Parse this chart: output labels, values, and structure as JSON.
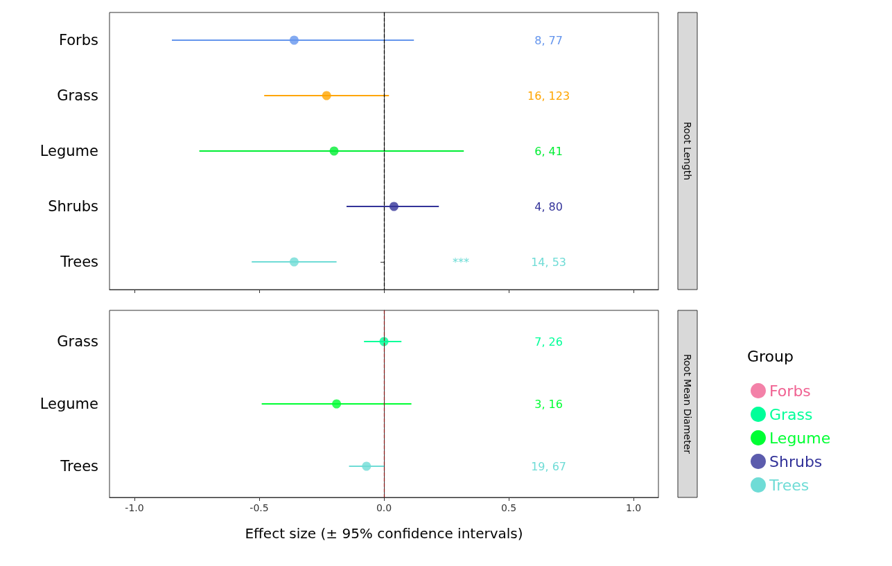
{
  "chart_data": [
    {
      "type": "scatter",
      "y2label": "Root Length",
      "orientation": "horizontal",
      "categories": [
        "Forbs",
        "Grass",
        "Legume",
        "Shrubs",
        "Trees"
      ],
      "marker": "circle",
      "grid": false,
      "legend": false,
      "tick_labels": "y",
      "xlim": [
        -1.1,
        1.1
      ],
      "xticks": [
        -1,
        -0.5,
        0,
        0.5,
        1
      ],
      "values": [
        -0.36,
        -0.23,
        -0.2,
        0.04,
        -0.36
      ],
      "errors": [
        [
          -0.85,
          0.12
        ],
        [
          -0.48,
          0.02
        ],
        [
          -0.74,
          0.32
        ],
        [
          -0.15,
          0.22
        ],
        [
          -0.53,
          -0.19
        ]
      ],
      "colors": [
        "#6495ed",
        "#ffa500",
        "#00ee33",
        "#333399",
        "#6fdcd6"
      ],
      "ref_lines": [
        {
          "axis": "x",
          "value": 0,
          "line_style": "dashed",
          "color": "#000000"
        }
      ],
      "annotations": [
        "***",
        "8, 77",
        "16, 123",
        "6, 41",
        "4, 80",
        "14, 53"
      ]
    },
    {
      "type": "scatter",
      "y2label": "Root Mean Diameter",
      "orientation": "horizontal",
      "categories": [
        "Grass",
        "Legume",
        "Trees"
      ],
      "marker": "circle",
      "grid": false,
      "legend": "right",
      "legend_title": "Group",
      "xlabel": "Effect size (± 95% confidence intervals)",
      "xlim": [
        -1.1,
        1.1
      ],
      "xticks": [
        {
          "value": -1,
          "label": "-1.0"
        },
        {
          "value": -0.5,
          "label": "-0.5"
        },
        {
          "value": 0,
          "label": "0.0"
        },
        {
          "value": 0.5,
          "label": "0.5"
        },
        {
          "value": 1,
          "label": "1.0"
        }
      ],
      "series": [
        {
          "name": "Forbs",
          "color": "#f06292",
          "values": [
            null,
            null,
            null
          ]
        },
        {
          "name": "Grass",
          "color": "#00ff99",
          "values": [
            0.0,
            null,
            null
          ],
          "errors": [
            [
              -0.08,
              0.07
            ],
            null,
            null
          ]
        },
        {
          "name": "Legume",
          "color": "#00ff33",
          "values": [
            null,
            -0.19,
            null
          ],
          "errors": [
            null,
            [
              -0.49,
              0.11
            ],
            null
          ]
        },
        {
          "name": "Shrubs",
          "color": "#333399",
          "values": [
            null,
            null,
            null
          ]
        },
        {
          "name": "Trees",
          "color": "#6fdcd6",
          "values": [
            null,
            null,
            -0.07
          ],
          "errors": [
            null,
            null,
            [
              -0.14,
              0.0
            ]
          ]
        }
      ],
      "ref_lines": [
        {
          "axis": "x",
          "value": 0,
          "line_style": "dashed",
          "color": "#8b1a1a"
        }
      ],
      "annotations": [
        "7, 26",
        "3, 16",
        "19, 67"
      ]
    }
  ]
}
